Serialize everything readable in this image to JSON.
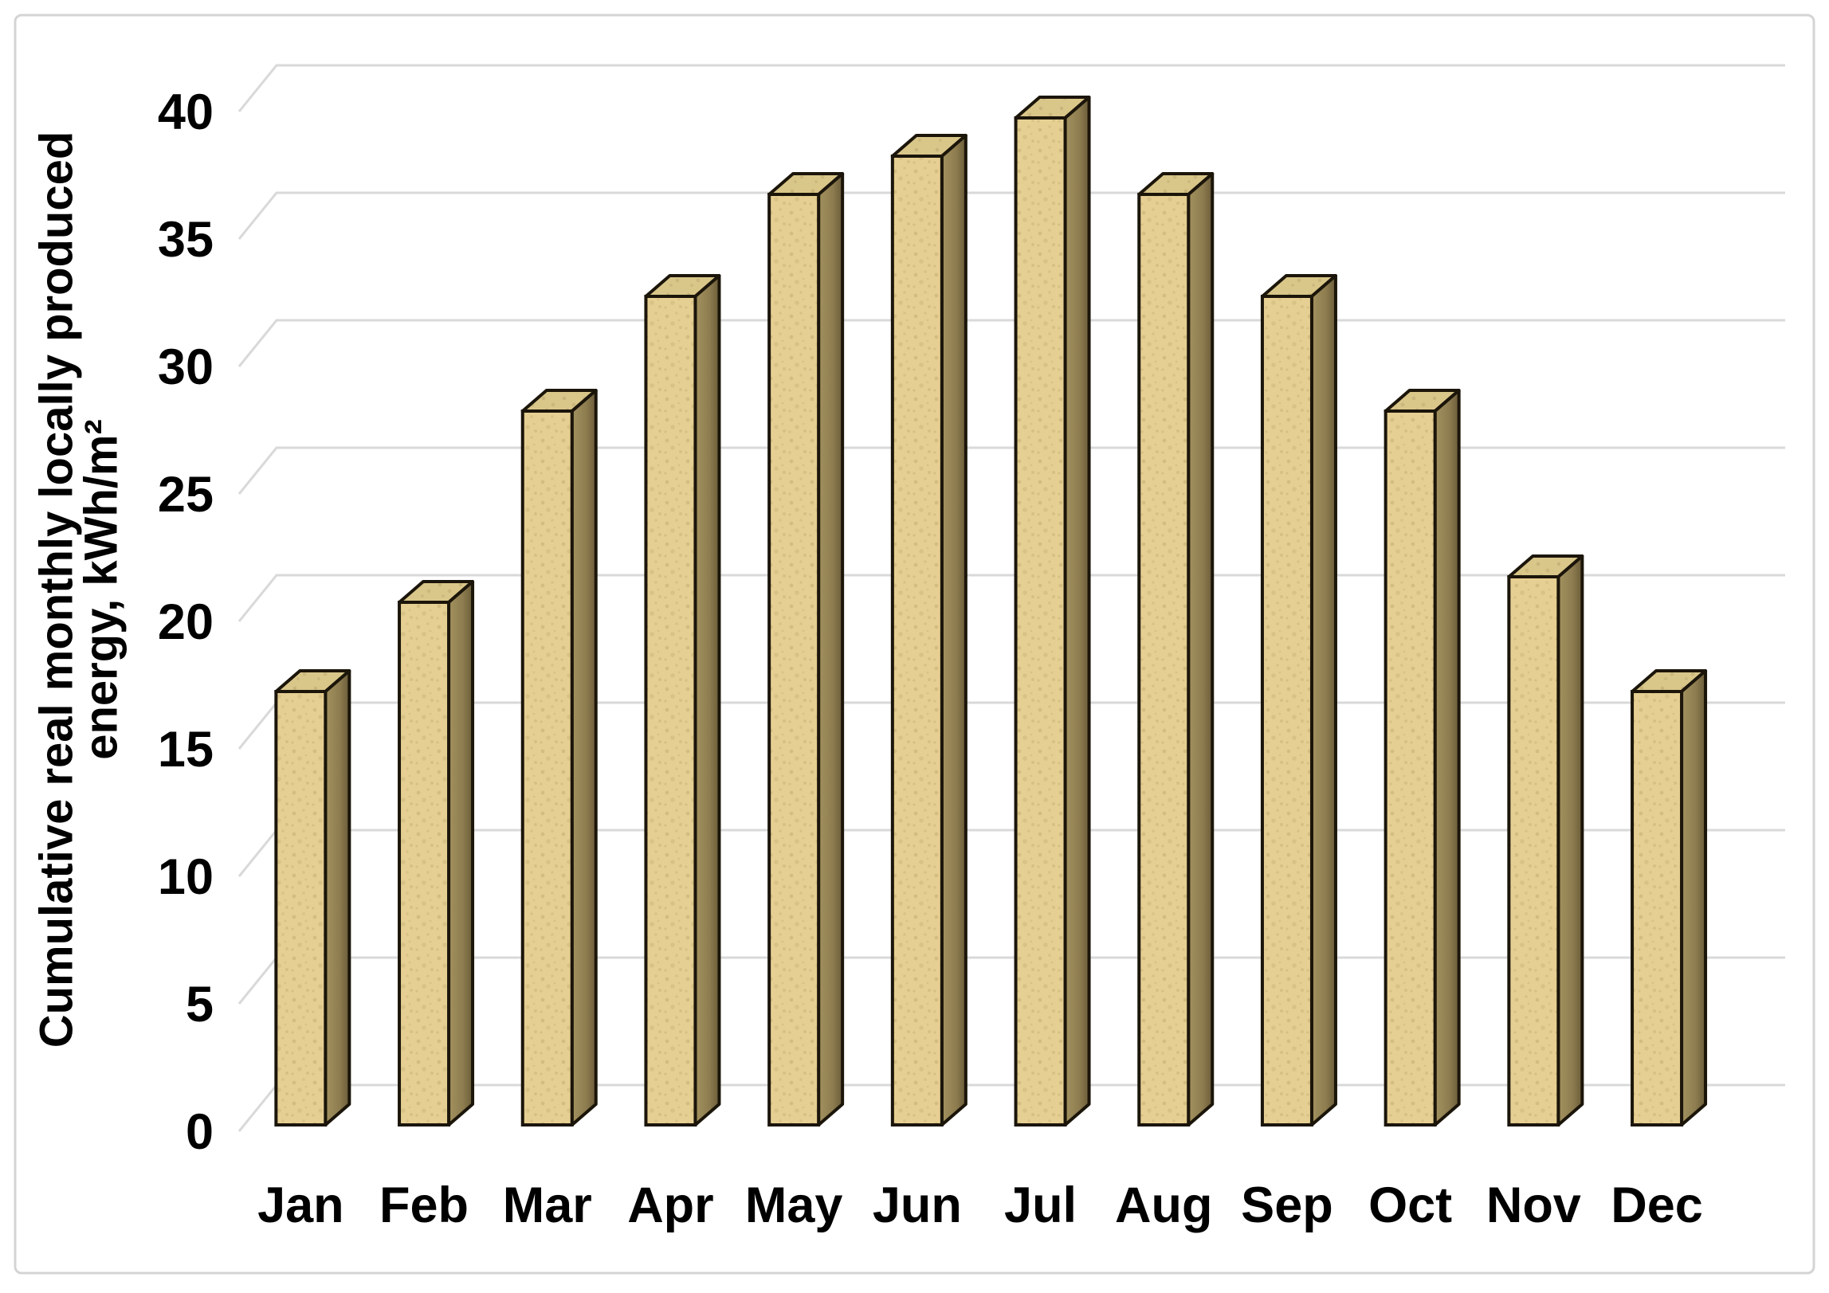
{
  "figure": {
    "background": "#ffffff",
    "frame_border_color": "#d4d4d4"
  },
  "chart_data": {
    "type": "bar",
    "style": "3d-column",
    "title": "",
    "xlabel": "",
    "ylabel": "Cumulative real monthly locally produced energy, kWh/m²",
    "ylabel_line1": "Cumulative real monthly locally produced",
    "ylabel_line2": "energy, kWh/m²",
    "categories": [
      "Jan",
      "Feb",
      "Mar",
      "Apr",
      "May",
      "Jun",
      "Jul",
      "Aug",
      "Sep",
      "Oct",
      "Nov",
      "Dec"
    ],
    "values": [
      17,
      20.5,
      28,
      32.5,
      36.5,
      38,
      39.5,
      36.5,
      32.5,
      28,
      21.5,
      17
    ],
    "ylim": [
      0,
      40
    ],
    "ytick_step": 5,
    "yticks": [
      0,
      5,
      10,
      15,
      20,
      25,
      30,
      35,
      40
    ],
    "grid": true,
    "legend": false,
    "colors": {
      "bar_front": "#e6cf92",
      "bar_top": "#d9c689",
      "bar_side": "#a3925f",
      "bar_side_dark": "#6b5c3a",
      "bar_outline": "#1b150a",
      "gridline": "#d9d9d9",
      "text": "#000000"
    }
  }
}
